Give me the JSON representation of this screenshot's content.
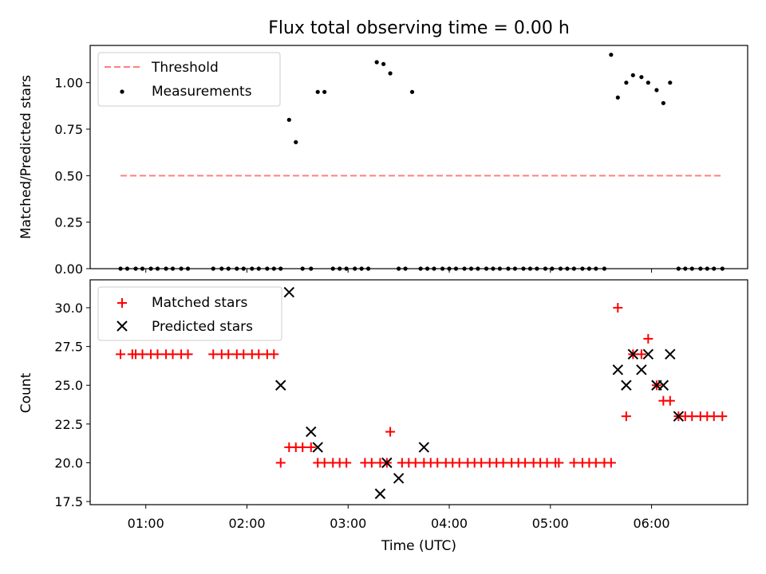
{
  "chart_data": [
    {
      "type": "scatter",
      "title": "Flux total observing time = 0.00 h",
      "xlabel": "",
      "ylabel": "Matched/Predicted stars",
      "xlim": [
        "00:27",
        "06:57"
      ],
      "ylim": [
        0,
        1.2
      ],
      "yticks": [
        "0.00",
        "0.25",
        "0.50",
        "0.75",
        "1.00"
      ],
      "grid": false,
      "legend": {
        "position": "top-left",
        "entries": [
          "Threshold",
          "Measurements"
        ]
      },
      "threshold": {
        "name": "Threshold",
        "value": 0.5,
        "x_start": "00:45",
        "x_end": "06:42",
        "color": "#ff7f7f",
        "style": "dashed"
      },
      "series": [
        {
          "name": "Measurements",
          "color": "#000000",
          "x": [
            "00:45",
            "00:49",
            "00:54",
            "00:58",
            "01:03",
            "01:07",
            "01:12",
            "01:16",
            "01:21",
            "01:25",
            "01:40",
            "01:45",
            "01:49",
            "01:54",
            "01:58",
            "02:03",
            "02:07",
            "02:12",
            "02:16",
            "02:20",
            "02:25",
            "02:29",
            "02:33",
            "02:38",
            "02:42",
            "02:46",
            "02:51",
            "02:55",
            "02:59",
            "03:04",
            "03:08",
            "03:12",
            "03:17",
            "03:21",
            "03:25",
            "03:30",
            "03:34",
            "03:38",
            "03:43",
            "03:47",
            "03:51",
            "03:56",
            "04:00",
            "04:04",
            "04:09",
            "04:13",
            "04:17",
            "04:22",
            "04:26",
            "04:30",
            "04:35",
            "04:39",
            "04:44",
            "04:48",
            "04:52",
            "04:57",
            "05:01",
            "05:06",
            "05:10",
            "05:14",
            "05:19",
            "05:23",
            "05:27",
            "05:32",
            "05:36",
            "05:40",
            "05:45",
            "05:49",
            "05:54",
            "05:58",
            "06:03",
            "06:07",
            "06:11",
            "06:16",
            "06:20",
            "06:24",
            "06:29",
            "06:33",
            "06:37",
            "06:42"
          ],
          "y": [
            0,
            0,
            0,
            0,
            0,
            0,
            0,
            0,
            0,
            0,
            0,
            0,
            0,
            0,
            0,
            0,
            0,
            0,
            0,
            0,
            0.8,
            0.68,
            0,
            0,
            0.95,
            0.95,
            0,
            0,
            0,
            0,
            0,
            0,
            1.11,
            1.1,
            1.05,
            0,
            0,
            0.95,
            0,
            0,
            0,
            0,
            0,
            0,
            0,
            0,
            0,
            0,
            0,
            0,
            0,
            0,
            0,
            0,
            0,
            0,
            0,
            0,
            0,
            0,
            0,
            0,
            0,
            0,
            1.15,
            0.92,
            1.0,
            1.04,
            1.03,
            1.0,
            0.96,
            0.89,
            1.0,
            0,
            0,
            0,
            0,
            0,
            0,
            0
          ]
        }
      ]
    },
    {
      "type": "scatter",
      "title": "",
      "xlabel": "Time (UTC)",
      "ylabel": "Count",
      "xlim": [
        "00:27",
        "06:57"
      ],
      "xticks": [
        "01:00",
        "02:00",
        "03:00",
        "04:00",
        "05:00",
        "06:00"
      ],
      "ylim": [
        17.3,
        31.8
      ],
      "yticks": [
        "17.5",
        "20.0",
        "22.5",
        "25.0",
        "27.5",
        "30.0"
      ],
      "grid": false,
      "legend": {
        "position": "top-left",
        "entries": [
          "Matched stars",
          "Predicted stars"
        ]
      },
      "series": [
        {
          "name": "Matched stars",
          "marker": "+",
          "color": "#ff0000",
          "x": [
            "00:45",
            "00:52",
            "00:54",
            "00:58",
            "01:03",
            "01:07",
            "01:12",
            "01:16",
            "01:21",
            "01:25",
            "01:40",
            "01:45",
            "01:49",
            "01:54",
            "01:58",
            "02:03",
            "02:07",
            "02:12",
            "02:16",
            "02:20",
            "02:25",
            "02:29",
            "02:33",
            "02:38",
            "02:42",
            "02:46",
            "02:51",
            "02:55",
            "02:59",
            "03:10",
            "03:14",
            "03:19",
            "03:23",
            "03:25",
            "03:32",
            "03:36",
            "03:40",
            "03:45",
            "03:49",
            "03:53",
            "03:58",
            "04:02",
            "04:06",
            "04:11",
            "04:15",
            "04:19",
            "04:24",
            "04:28",
            "04:32",
            "04:37",
            "04:41",
            "04:45",
            "04:50",
            "04:54",
            "04:58",
            "05:03",
            "05:05",
            "05:14",
            "05:19",
            "05:23",
            "05:27",
            "05:32",
            "05:36",
            "05:40",
            "05:45",
            "05:49",
            "05:54",
            "05:58",
            "06:03",
            "06:07",
            "06:11",
            "06:16",
            "06:20",
            "06:24",
            "06:29",
            "06:33",
            "06:37",
            "06:42"
          ],
          "y": [
            27,
            27,
            27,
            27,
            27,
            27,
            27,
            27,
            27,
            27,
            27,
            27,
            27,
            27,
            27,
            27,
            27,
            27,
            27,
            20,
            21,
            21,
            21,
            21,
            20,
            20,
            20,
            20,
            20,
            20,
            20,
            20,
            20,
            22,
            20,
            20,
            20,
            20,
            20,
            20,
            20,
            20,
            20,
            20,
            20,
            20,
            20,
            20,
            20,
            20,
            20,
            20,
            20,
            20,
            20,
            20,
            20,
            20,
            20,
            20,
            20,
            20,
            20,
            30,
            23,
            27,
            27,
            28,
            25,
            24,
            24,
            23,
            23,
            23,
            23,
            23,
            23,
            23
          ]
        },
        {
          "name": "Predicted stars",
          "marker": "x",
          "color": "#000000",
          "x": [
            "02:20",
            "02:25",
            "02:38",
            "02:42",
            "03:19",
            "03:23",
            "03:30",
            "03:45",
            "05:40",
            "05:45",
            "05:49",
            "05:54",
            "05:58",
            "06:03",
            "06:07",
            "06:11",
            "06:16"
          ],
          "y": [
            25,
            31,
            22,
            21,
            18,
            20,
            19,
            21,
            26,
            25,
            27,
            26,
            27,
            25,
            25,
            27,
            23
          ]
        }
      ]
    }
  ]
}
